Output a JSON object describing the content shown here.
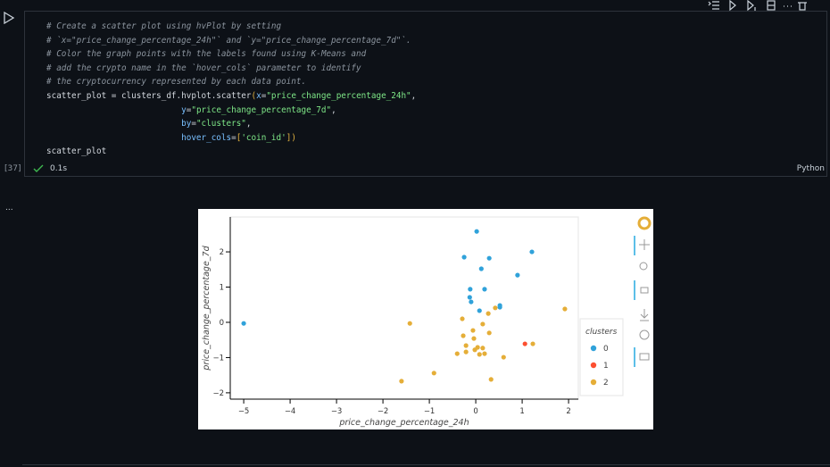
{
  "cell": {
    "code_lines": [
      "# Create a scatter plot using hvPlot by setting",
      "# `x=\"price_change_percentage_24h\"` and `y=\"price_change_percentage_7d\"`.",
      "# Color the graph points with the labels found using K-Means and",
      "# add the crypto name in the `hover_cols` parameter to identify",
      "# the cryptocurrency represented by each data point.",
      "scatter_plot = clusters_df.hvplot.scatter(x=\"price_change_percentage_24h\",",
      "                           y=\"price_change_percentage_7d\",",
      "                           by=\"clusters\",",
      "                           hover_cols=['coin_id'])",
      "scatter_plot"
    ],
    "execution_count": "[37]",
    "status_time": "0.1s",
    "language": "Python"
  },
  "output": {
    "prompt": "..."
  },
  "chart_data": {
    "type": "scatter",
    "xlabel": "price_change_percentage_24h",
    "ylabel": "price_change_percentage_7d",
    "xlim": [
      -5.29,
      2.21
    ],
    "ylim": [
      -2.18,
      2.99
    ],
    "xticks": [
      {
        "value": -5,
        "label": "−5"
      },
      {
        "value": -4,
        "label": "−4"
      },
      {
        "value": -3,
        "label": "−3"
      },
      {
        "value": -2,
        "label": "−2"
      },
      {
        "value": -1,
        "label": "−1"
      },
      0,
      1,
      2
    ],
    "yticks": [
      {
        "value": -2,
        "label": "−2"
      },
      {
        "value": -1,
        "label": "−1"
      },
      0,
      1,
      2
    ],
    "legend_title": "clusters",
    "legend": "right",
    "series": [
      {
        "name": "0",
        "color": "#30a2da",
        "x": [
          -5,
          0.02,
          -0.25,
          0.29,
          0.12,
          1.21,
          0.9,
          -0.12,
          0.19,
          -0.13,
          -0.1,
          0.08,
          0.52,
          0.52
        ],
        "values": [
          -0.03,
          2.58,
          1.85,
          1.82,
          1.52,
          2.0,
          1.34,
          0.94,
          0.94,
          0.71,
          0.58,
          0.33,
          0.48,
          0.43
        ]
      },
      {
        "name": "1",
        "color": "#fc4f30",
        "x": [
          1.06
        ],
        "values": [
          -0.61
        ]
      },
      {
        "name": "2",
        "color": "#e5ae38",
        "x": [
          -1.42,
          1.92,
          -0.29,
          0.27,
          0.42,
          0.15,
          -0.06,
          -0.27,
          0.29,
          -0.04,
          -0.21,
          1.23,
          0.04,
          0.15,
          -0.02,
          -0.4,
          -0.21,
          0.08,
          0.19,
          0.6,
          -0.9,
          0.33,
          -1.6
        ],
        "values": [
          -0.03,
          0.38,
          0.1,
          0.25,
          0.41,
          -0.05,
          -0.23,
          -0.38,
          -0.3,
          -0.46,
          -0.66,
          -0.61,
          -0.71,
          -0.73,
          -0.78,
          -0.89,
          -0.84,
          -0.91,
          -0.89,
          -0.99,
          -1.44,
          -1.62,
          -1.67
        ]
      }
    ]
  }
}
